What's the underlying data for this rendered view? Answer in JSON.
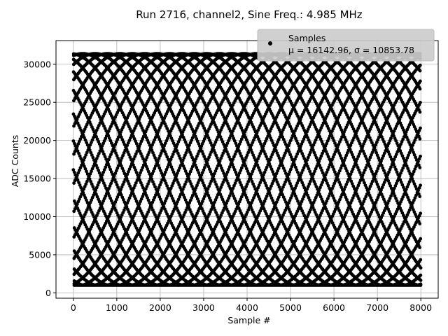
{
  "chart_data": {
    "type": "scatter",
    "title": "Run 2716, channel2, Sine Freq.: 4.985 MHz",
    "xlabel": "Sample #",
    "ylabel": "ADC Counts",
    "xlim": [
      -400,
      8400
    ],
    "ylim": [
      -700,
      33100
    ],
    "xticks": [
      0,
      1000,
      2000,
      3000,
      4000,
      5000,
      6000,
      7000,
      8000
    ],
    "yticks": [
      0,
      5000,
      10000,
      15000,
      20000,
      25000,
      30000
    ],
    "grid": true,
    "legend": {
      "placement": "top-right",
      "entries": [
        {
          "label": "Samples",
          "stats": "μ = 16142.96, σ = 10853.78",
          "marker": "circle",
          "color": "#000000"
        }
      ]
    },
    "series": [
      {
        "name": "Samples",
        "color": "#000000",
        "n_samples": 8000,
        "mean": 16142.96,
        "std": 10853.78,
        "signal": {
          "shape": "sine",
          "amplitude": 15250,
          "offset": 16142.96,
          "cycles_per_sample": 0.03986,
          "clip_low": 1000,
          "clip_high": 31500
        }
      }
    ]
  }
}
